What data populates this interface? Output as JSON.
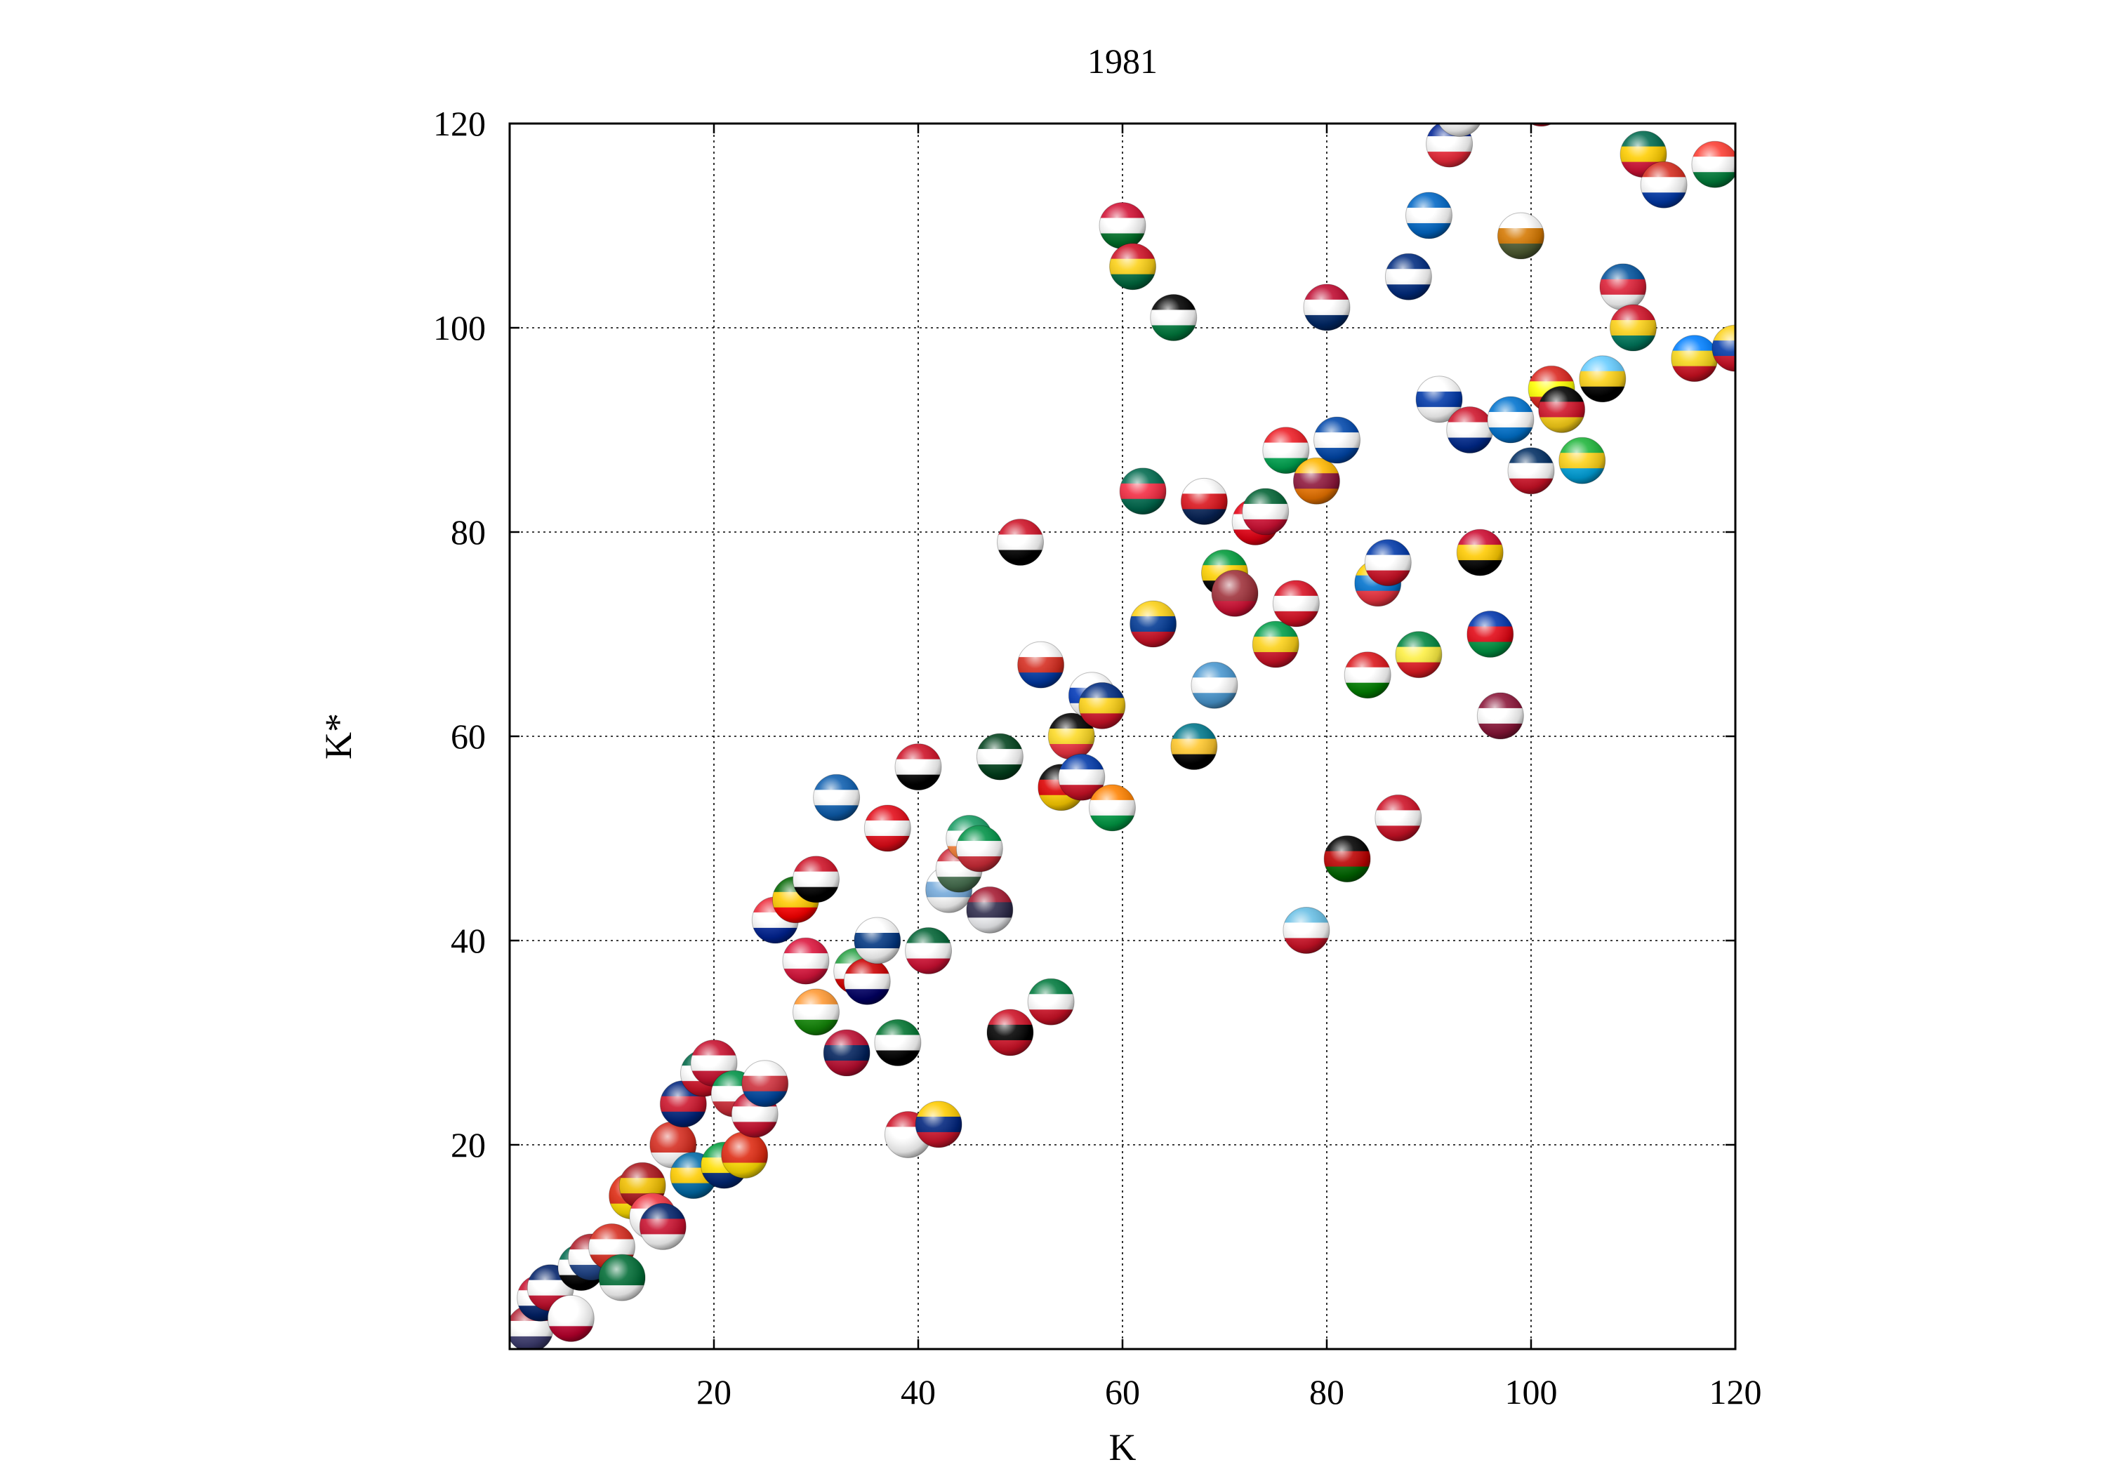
{
  "chart_data": {
    "type": "scatter",
    "title": "1981",
    "xlabel": "K",
    "ylabel": "K*",
    "xlim": [
      0,
      120
    ],
    "ylim": [
      0,
      120
    ],
    "xticks": [
      20,
      40,
      60,
      80,
      100,
      120
    ],
    "yticks": [
      20,
      40,
      60,
      80,
      100,
      120
    ],
    "grid": true,
    "marker": "country-flag-ball",
    "points": [
      {
        "x": 2,
        "y": 2,
        "flag": [
          "#b22234",
          "#ffffff",
          "#3c3b6e"
        ]
      },
      {
        "x": 3,
        "y": 5,
        "flag": [
          "#c8102e",
          "#ffffff",
          "#012169"
        ]
      },
      {
        "x": 4,
        "y": 6,
        "flag": [
          "#012169",
          "#ffffff",
          "#c8102e"
        ]
      },
      {
        "x": 6,
        "y": 3,
        "flag": [
          "#ffffff",
          "#ffffff",
          "#bc002d"
        ]
      },
      {
        "x": 7,
        "y": 8,
        "flag": [
          "#006a4e",
          "#ffffff",
          "#000000"
        ]
      },
      {
        "x": 8,
        "y": 9,
        "flag": [
          "#ae1c28",
          "#ffffff",
          "#21468b"
        ]
      },
      {
        "x": 10,
        "y": 10,
        "flag": [
          "#d52b1e",
          "#ffffff",
          "#d52b1e"
        ]
      },
      {
        "x": 11,
        "y": 7,
        "flag": [
          "#006c35",
          "#006c35",
          "#ffffff"
        ]
      },
      {
        "x": 12,
        "y": 15,
        "flag": [
          "#de2910",
          "#de2910",
          "#ffde00"
        ]
      },
      {
        "x": 13,
        "y": 16,
        "flag": [
          "#aa151b",
          "#f1bf00",
          "#aa151b"
        ]
      },
      {
        "x": 14,
        "y": 13,
        "flag": [
          "#ef3340",
          "#ffffff",
          "#ffffff"
        ]
      },
      {
        "x": 15,
        "y": 12,
        "flag": [
          "#012169",
          "#c8102e",
          "#ffffff"
        ]
      },
      {
        "x": 16,
        "y": 20,
        "flag": [
          "#d52b1e",
          "#d52b1e",
          "#ffffff"
        ]
      },
      {
        "x": 18,
        "y": 17,
        "flag": [
          "#006aa7",
          "#fecc00",
          "#006aa7"
        ]
      },
      {
        "x": 17,
        "y": 24,
        "flag": [
          "#00247d",
          "#cc142b",
          "#00247d"
        ]
      },
      {
        "x": 19,
        "y": 27,
        "flag": [
          "#006847",
          "#ffffff",
          "#ce1126"
        ]
      },
      {
        "x": 20,
        "y": 28,
        "flag": [
          "#c8102e",
          "#ffffff",
          "#c8102e"
        ]
      },
      {
        "x": 21,
        "y": 18,
        "flag": [
          "#009c3b",
          "#ffdf00",
          "#002776"
        ]
      },
      {
        "x": 22,
        "y": 25,
        "flag": [
          "#009246",
          "#ffffff",
          "#ce2b37"
        ]
      },
      {
        "x": 23,
        "y": 19,
        "flag": [
          "#de2910",
          "#de2910",
          "#ffde00"
        ]
      },
      {
        "x": 24,
        "y": 23,
        "flag": [
          "#c8102e",
          "#ffffff",
          "#c8102e"
        ]
      },
      {
        "x": 25,
        "y": 26,
        "flag": [
          "#ffffff",
          "#cd2e3a",
          "#0047a0"
        ]
      },
      {
        "x": 26,
        "y": 42,
        "flag": [
          "#ed2939",
          "#ffffff",
          "#002395"
        ]
      },
      {
        "x": 28,
        "y": 44,
        "flag": [
          "#006600",
          "#ffcc00",
          "#ff0000"
        ]
      },
      {
        "x": 29,
        "y": 38,
        "flag": [
          "#dc143c",
          "#ffffff",
          "#dc143c"
        ]
      },
      {
        "x": 30,
        "y": 46,
        "flag": [
          "#ce1126",
          "#ffffff",
          "#000000"
        ]
      },
      {
        "x": 30,
        "y": 33,
        "flag": [
          "#ff9933",
          "#ffffff",
          "#138808"
        ]
      },
      {
        "x": 32,
        "y": 54,
        "flag": [
          "#0d5eaf",
          "#ffffff",
          "#0d5eaf"
        ]
      },
      {
        "x": 33,
        "y": 29,
        "flag": [
          "#ba0c2f",
          "#00205b",
          "#ba0c2f"
        ]
      },
      {
        "x": 34,
        "y": 37,
        "flag": [
          "#239f40",
          "#ffffff",
          "#da0000"
        ]
      },
      {
        "x": 35,
        "y": 36,
        "flag": [
          "#cc0001",
          "#ffffff",
          "#010066"
        ]
      },
      {
        "x": 36,
        "y": 40,
        "flag": [
          "#ffffff",
          "#003580",
          "#ffffff"
        ]
      },
      {
        "x": 37,
        "y": 51,
        "flag": [
          "#e30a17",
          "#ffffff",
          "#e30a17"
        ]
      },
      {
        "x": 38,
        "y": 30,
        "flag": [
          "#00732f",
          "#ffffff",
          "#000000"
        ]
      },
      {
        "x": 40,
        "y": 57,
        "flag": [
          "#ce1126",
          "#ffffff",
          "#000000"
        ]
      },
      {
        "x": 39,
        "y": 21,
        "flag": [
          "#ce1126",
          "#ffffff",
          "#ffffff"
        ]
      },
      {
        "x": 41,
        "y": 39,
        "flag": [
          "#006233",
          "#ffffff",
          "#d21034"
        ]
      },
      {
        "x": 42,
        "y": 22,
        "flag": [
          "#ffcc00",
          "#00247d",
          "#cf142b"
        ]
      },
      {
        "x": 43,
        "y": 45,
        "flag": [
          "#ffffff",
          "#75aadb",
          "#ffffff"
        ]
      },
      {
        "x": 44,
        "y": 47,
        "flag": [
          "#ce2939",
          "#ffffff",
          "#477050"
        ]
      },
      {
        "x": 45,
        "y": 50,
        "flag": [
          "#169b62",
          "#ffffff",
          "#ff883e"
        ]
      },
      {
        "x": 46,
        "y": 49,
        "flag": [
          "#009246",
          "#ffffff",
          "#ce2b37"
        ]
      },
      {
        "x": 47,
        "y": 43,
        "flag": [
          "#a51931",
          "#2d2a4a",
          "#f4f5f8"
        ]
      },
      {
        "x": 48,
        "y": 58,
        "flag": [
          "#01411c",
          "#ffffff",
          "#01411c"
        ]
      },
      {
        "x": 49,
        "y": 31,
        "flag": [
          "#ce1126",
          "#000000",
          "#ce1126"
        ]
      },
      {
        "x": 50,
        "y": 79,
        "flag": [
          "#ce1126",
          "#ffffff",
          "#000000"
        ]
      },
      {
        "x": 52,
        "y": 67,
        "flag": [
          "#ffffff",
          "#d52b1e",
          "#0039a6"
        ]
      },
      {
        "x": 53,
        "y": 34,
        "flag": [
          "#007a3d",
          "#ffffff",
          "#ce1126"
        ]
      },
      {
        "x": 54,
        "y": 55,
        "flag": [
          "#000000",
          "#dd0000",
          "#ffce00"
        ]
      },
      {
        "x": 55,
        "y": 60,
        "flag": [
          "#000000",
          "#fdda24",
          "#ef3340"
        ]
      },
      {
        "x": 56,
        "y": 56,
        "flag": [
          "#0038a8",
          "#ffffff",
          "#ce1126"
        ]
      },
      {
        "x": 57,
        "y": 64,
        "flag": [
          "#ffffff",
          "#0038b8",
          "#ffffff"
        ]
      },
      {
        "x": 58,
        "y": 63,
        "flag": [
          "#002b7f",
          "#fcd116",
          "#ce1126"
        ]
      },
      {
        "x": 59,
        "y": 53,
        "flag": [
          "#ff8200",
          "#ffffff",
          "#009a44"
        ]
      },
      {
        "x": 60,
        "y": 110,
        "flag": [
          "#d21034",
          "#ffffff",
          "#007229"
        ]
      },
      {
        "x": 61,
        "y": 106,
        "flag": [
          "#ce1126",
          "#fcd116",
          "#006b3f"
        ]
      },
      {
        "x": 62,
        "y": 84,
        "flag": [
          "#006a4e",
          "#f42a41",
          "#006a4e"
        ]
      },
      {
        "x": 63,
        "y": 71,
        "flag": [
          "#fcd116",
          "#003893",
          "#ce1126"
        ]
      },
      {
        "x": 65,
        "y": 101,
        "flag": [
          "#000000",
          "#ffffff",
          "#007a3d"
        ]
      },
      {
        "x": 67,
        "y": 59,
        "flag": [
          "#00778b",
          "#ffc72c",
          "#000000"
        ]
      },
      {
        "x": 68,
        "y": 83,
        "flag": [
          "#ffffff",
          "#da121a",
          "#072357"
        ]
      },
      {
        "x": 69,
        "y": 65,
        "flag": [
          "#4997d0",
          "#ffffff",
          "#4997d0"
        ]
      },
      {
        "x": 70,
        "y": 76,
        "flag": [
          "#009b3a",
          "#fed100",
          "#000000"
        ]
      },
      {
        "x": 71,
        "y": 74,
        "flag": [
          "#9e3039",
          "#9e3039",
          "#d21034"
        ]
      },
      {
        "x": 73,
        "y": 81,
        "flag": [
          "#e70013",
          "#ffffff",
          "#e70013"
        ]
      },
      {
        "x": 74,
        "y": 82,
        "flag": [
          "#006233",
          "#ffffff",
          "#d21034"
        ]
      },
      {
        "x": 75,
        "y": 69,
        "flag": [
          "#009e49",
          "#fcd116",
          "#ce1126"
        ]
      },
      {
        "x": 76,
        "y": 88,
        "flag": [
          "#ed1c24",
          "#ffffff",
          "#00a651"
        ]
      },
      {
        "x": 77,
        "y": 73,
        "flag": [
          "#d91023",
          "#ffffff",
          "#d91023"
        ]
      },
      {
        "x": 78,
        "y": 41,
        "flag": [
          "#68bfe5",
          "#ffffff",
          "#ce1126"
        ]
      },
      {
        "x": 79,
        "y": 85,
        "flag": [
          "#ffb700",
          "#8d153a",
          "#eb7400"
        ]
      },
      {
        "x": 80,
        "y": 102,
        "flag": [
          "#bf0a30",
          "#ffffff",
          "#002868"
        ]
      },
      {
        "x": 81,
        "y": 89,
        "flag": [
          "#0047ab",
          "#ffffff",
          "#0047ab"
        ]
      },
      {
        "x": 82,
        "y": 48,
        "flag": [
          "#000000",
          "#bb0000",
          "#006600"
        ]
      },
      {
        "x": 84,
        "y": 66,
        "flag": [
          "#db161b",
          "#ffffff",
          "#008000"
        ]
      },
      {
        "x": 85,
        "y": 75,
        "flag": [
          "#ffd100",
          "#0072ce",
          "#ef3340"
        ]
      },
      {
        "x": 86,
        "y": 77,
        "flag": [
          "#0038a8",
          "#ffffff",
          "#ce1126"
        ]
      },
      {
        "x": 87,
        "y": 52,
        "flag": [
          "#ce1126",
          "#ffffff",
          "#ce1126"
        ]
      },
      {
        "x": 88,
        "y": 105,
        "flag": [
          "#002b7f",
          "#ffffff",
          "#002b7f"
        ]
      },
      {
        "x": 89,
        "y": 68,
        "flag": [
          "#00853f",
          "#fdef42",
          "#e31b23"
        ]
      },
      {
        "x": 90,
        "y": 111,
        "flag": [
          "#0067c6",
          "#ffffff",
          "#0067c6"
        ]
      },
      {
        "x": 91,
        "y": 93,
        "flag": [
          "#ffffff",
          "#0038a8",
          "#ffffff"
        ]
      },
      {
        "x": 92,
        "y": 118,
        "flag": [
          "#002395",
          "#ffffff",
          "#ed2939"
        ]
      },
      {
        "x": 93,
        "y": 121,
        "flag": [
          "#ffffff",
          "#009739",
          "#ffffff"
        ]
      },
      {
        "x": 94,
        "y": 90,
        "flag": [
          "#cf142b",
          "#ffffff",
          "#002a8f"
        ]
      },
      {
        "x": 95,
        "y": 78,
        "flag": [
          "#cc092f",
          "#ffcb00",
          "#000000"
        ]
      },
      {
        "x": 96,
        "y": 70,
        "flag": [
          "#0035ad",
          "#e20613",
          "#009543"
        ]
      },
      {
        "x": 97,
        "y": 62,
        "flag": [
          "#8a1538",
          "#ffffff",
          "#8a1538"
        ]
      },
      {
        "x": 98,
        "y": 91,
        "flag": [
          "#0073cf",
          "#ffffff",
          "#0073cf"
        ]
      },
      {
        "x": 99,
        "y": 109,
        "flag": [
          "#ffffff",
          "#d57800",
          "#4e5b31"
        ]
      },
      {
        "x": 100,
        "y": 86,
        "flag": [
          "#002d62",
          "#ffffff",
          "#ce1126"
        ]
      },
      {
        "x": 101,
        "y": 122,
        "flag": [
          "#ffcc00",
          "#006b3f",
          "#ce1126"
        ]
      },
      {
        "x": 102,
        "y": 94,
        "flag": [
          "#da251d",
          "#ffff00",
          "#da251d"
        ]
      },
      {
        "x": 103,
        "y": 92,
        "flag": [
          "#000000",
          "#ce1126",
          "#fcd116"
        ]
      },
      {
        "x": 105,
        "y": 87,
        "flag": [
          "#1eb53a",
          "#fcd116",
          "#00a3dd"
        ]
      },
      {
        "x": 107,
        "y": 95,
        "flag": [
          "#66ccff",
          "#fcd116",
          "#000000"
        ]
      },
      {
        "x": 109,
        "y": 104,
        "flag": [
          "#02529c",
          "#dc1e35",
          "#ffffff"
        ]
      },
      {
        "x": 110,
        "y": 100,
        "flag": [
          "#ce1126",
          "#fcd116",
          "#007a5e"
        ]
      },
      {
        "x": 111,
        "y": 117,
        "flag": [
          "#006a4e",
          "#ffce00",
          "#d21034"
        ]
      },
      {
        "x": 113,
        "y": 114,
        "flag": [
          "#d52b1e",
          "#ffffff",
          "#0038a8"
        ]
      },
      {
        "x": 116,
        "y": 97,
        "flag": [
          "#007fff",
          "#f7d618",
          "#ce1021"
        ]
      },
      {
        "x": 118,
        "y": 116,
        "flag": [
          "#fc3d32",
          "#ffffff",
          "#007e3a"
        ]
      },
      {
        "x": 120,
        "y": 98,
        "flag": [
          "#fcd116",
          "#0038a8",
          "#ce1126"
        ]
      }
    ]
  }
}
